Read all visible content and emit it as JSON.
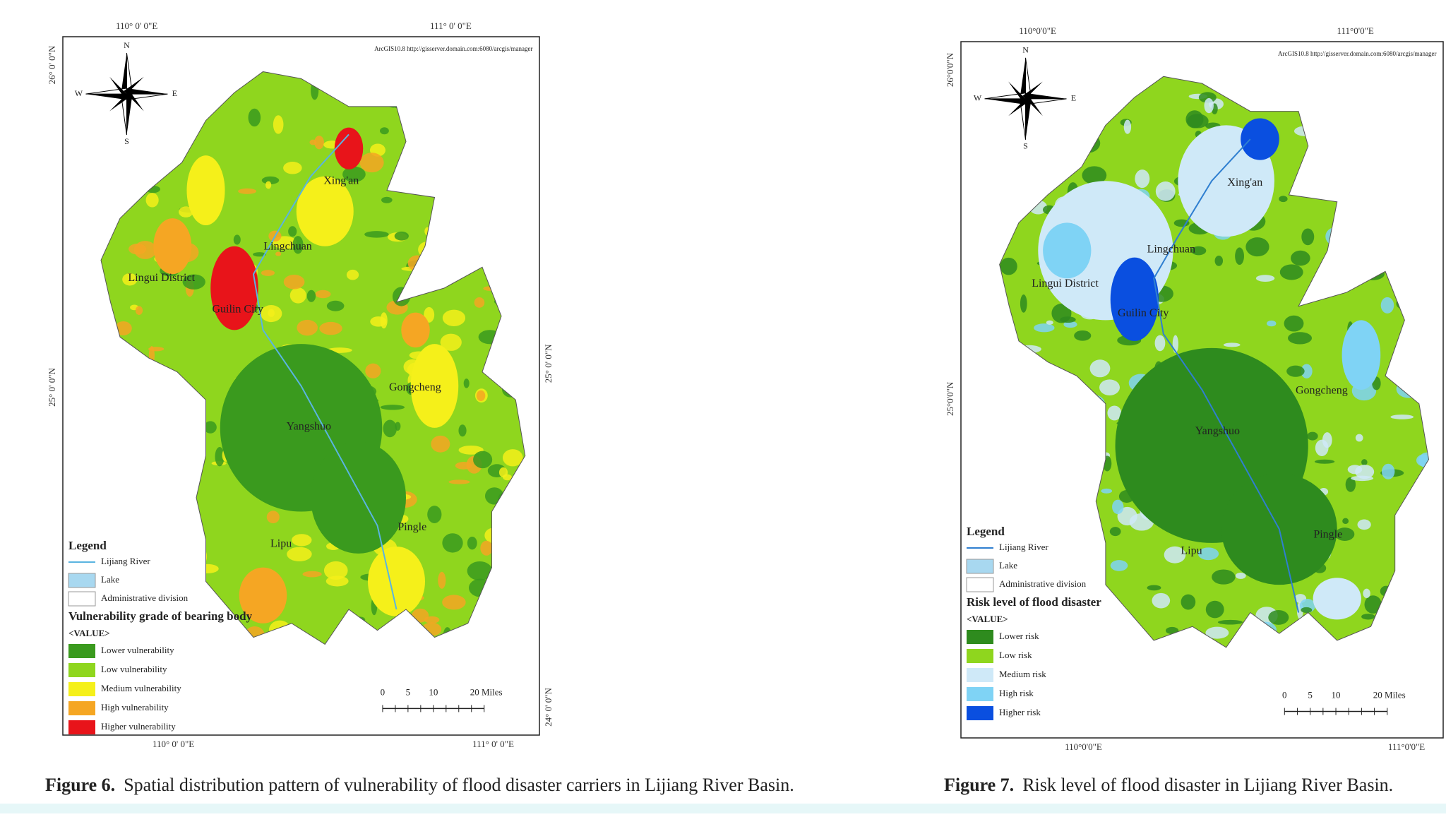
{
  "figures": [
    {
      "credit": "ArcGIS10.8 http://gisserver.domain.com:6080/arcgis/manager",
      "compass": {
        "north": "N",
        "south": "S",
        "west": "W",
        "east": "E"
      },
      "top_ticks": [
        "110° 0' 0\"E",
        "111° 0' 0\"E"
      ],
      "bottom_ticks": [
        "110° 0' 0\"E",
        "111° 0' 0\"E"
      ],
      "left_ticks": [
        "26° 0' 0\"N",
        "25° 0' 0\"N"
      ],
      "right_ticks": [
        "25° 0' 0\"N",
        "24° 0' 0\"N"
      ],
      "places": [
        "Xing'an",
        "Lingchuan",
        "Lingui District",
        "Guilin City",
        "Gongcheng",
        "Yangshuo",
        "Pingle",
        "Lipu"
      ],
      "legend": {
        "title": "Legend",
        "items": [
          {
            "label": "Lijiang River",
            "color": "#5ab4e0"
          },
          {
            "label": "Lake",
            "color": "#a8d8f0"
          },
          {
            "label": "Administrative division",
            "color": "#ffffff"
          }
        ],
        "grade_title": "Vulnerability grade of bearing body",
        "value_label": "<VALUE>",
        "classes": [
          {
            "label": "Lower vulnerability",
            "color": "#3a9a1e"
          },
          {
            "label": "Low vulnerability",
            "color": "#8fd61e"
          },
          {
            "label": "Medium vulnerability",
            "color": "#f5f01a"
          },
          {
            "label": "High vulnerability",
            "color": "#f5a623"
          },
          {
            "label": "Higher vulnerability",
            "color": "#e8141a"
          }
        ]
      },
      "scale": [
        "0",
        "5",
        "10",
        "20 Miles"
      ],
      "caption": {
        "label": "Figure 6.",
        "text": "Spatial distribution pattern of vulnerability of flood disaster carriers in Lijiang River Basin."
      }
    },
    {
      "credit": "ArcGIS10.8 http://gisserver.domain.com:6080/arcgis/manager",
      "compass": {
        "north": "N",
        "south": "S",
        "west": "W",
        "east": "E"
      },
      "top_ticks": [
        "110°0'0\"E",
        "111°0'0\"E"
      ],
      "bottom_ticks": [
        "110°0'0\"E",
        "111°0'0\"E"
      ],
      "left_ticks": [
        "26°0'0\"N",
        "25°0'0\"N"
      ],
      "places": [
        "Xing'an",
        "Lingchuan",
        "Lingui District",
        "Guilin City",
        "Gongcheng",
        "Yangshuo",
        "Pingle",
        "Lipu"
      ],
      "legend": {
        "title": "Legend",
        "items": [
          {
            "label": "Lijiang River",
            "color": "#2f7fd0"
          },
          {
            "label": "Lake",
            "color": "#a8d8f0"
          },
          {
            "label": "Administrative division",
            "color": "#ffffff"
          }
        ],
        "grade_title": "Risk level of flood disaster",
        "value_label": "<VALUE>",
        "classes": [
          {
            "label": "Lower risk",
            "color": "#2e8b1e"
          },
          {
            "label": "Low risk",
            "color": "#8fd61e"
          },
          {
            "label": "Medium risk",
            "color": "#cfe9f8"
          },
          {
            "label": "High risk",
            "color": "#7fd3f5"
          },
          {
            "label": "Higher risk",
            "color": "#0a4fe0"
          }
        ]
      },
      "scale": [
        "0",
        "5",
        "10",
        "20 Miles"
      ],
      "caption": {
        "label": "Figure 7.",
        "text": "Risk level of flood disaster in Lijiang River Basin."
      }
    }
  ]
}
